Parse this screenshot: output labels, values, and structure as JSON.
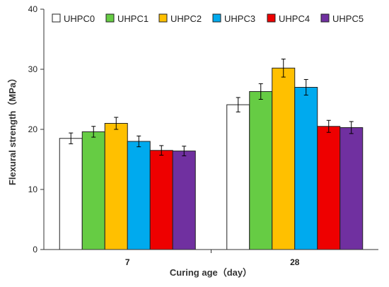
{
  "chart_data": {
    "type": "bar",
    "categories": [
      "7",
      "28"
    ],
    "series": [
      {
        "name": "UHPC0",
        "color": "#ffffff",
        "values": [
          18.5,
          24.1
        ],
        "errors": [
          0.9,
          1.2
        ]
      },
      {
        "name": "UHPC1",
        "color": "#66cc44",
        "values": [
          19.6,
          26.3
        ],
        "errors": [
          0.9,
          1.3
        ]
      },
      {
        "name": "UHPC2",
        "color": "#ffc000",
        "values": [
          21.0,
          30.2
        ],
        "errors": [
          1.0,
          1.5
        ]
      },
      {
        "name": "UHPC3",
        "color": "#00aaee",
        "values": [
          18.0,
          27.0
        ],
        "errors": [
          0.9,
          1.3
        ]
      },
      {
        "name": "UHPC4",
        "color": "#ee0000",
        "values": [
          16.5,
          20.5
        ],
        "errors": [
          0.8,
          1.0
        ]
      },
      {
        "name": "UHPC5",
        "color": "#7030a0",
        "values": [
          16.4,
          20.3
        ],
        "errors": [
          0.8,
          1.0
        ]
      }
    ],
    "xlabel": "Curing age（day）",
    "ylabel": "Flexural strength（MPa）",
    "ylim": [
      0,
      40
    ],
    "yticks": [
      "0",
      "10",
      "20",
      "30",
      "40"
    ],
    "grid": false,
    "legend": "top"
  }
}
